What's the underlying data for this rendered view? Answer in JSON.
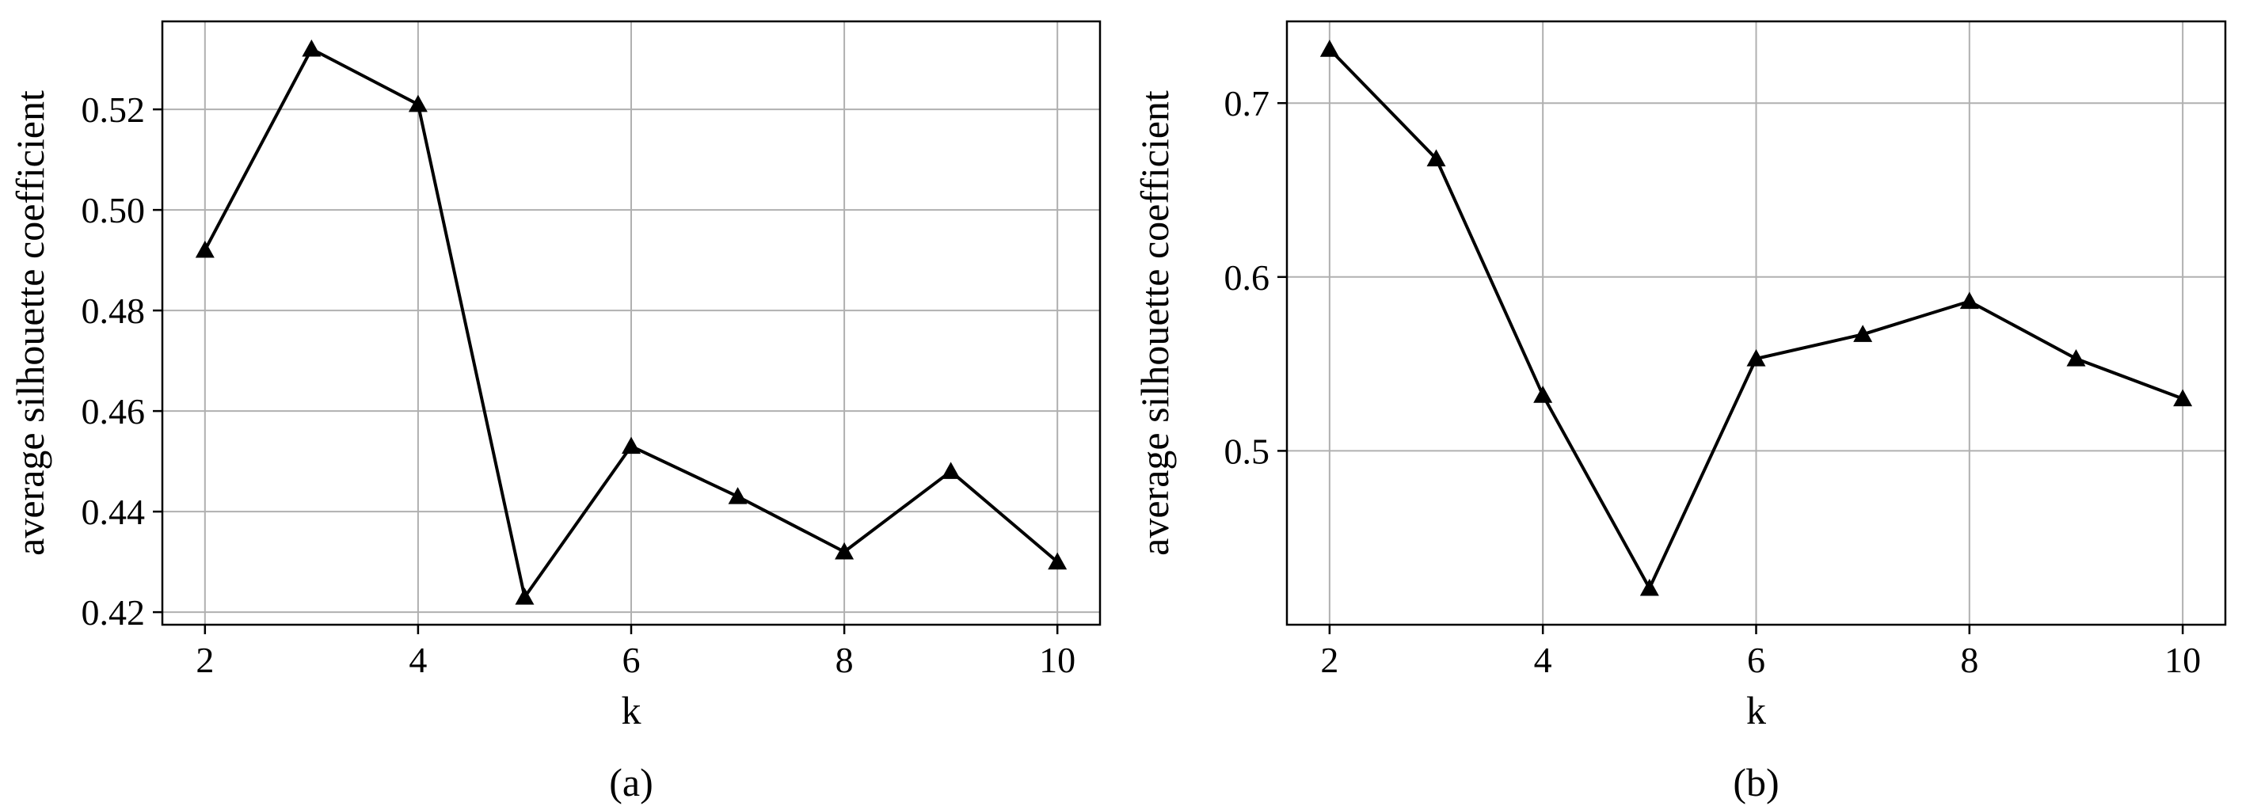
{
  "chart_data": [
    {
      "type": "line",
      "caption": "(a)",
      "xlabel": "k",
      "ylabel": "average silhouette coefficient",
      "x": [
        2,
        3,
        4,
        5,
        6,
        7,
        8,
        9,
        10
      ],
      "series": [
        {
          "values": [
            0.492,
            0.532,
            0.521,
            0.423,
            0.453,
            0.443,
            0.432,
            0.448,
            0.43
          ]
        }
      ],
      "marker": "triangle",
      "line_color": "#000000",
      "xlim": [
        1.6,
        10.4
      ],
      "ylim": [
        0.4175,
        0.5375
      ],
      "xticks": [
        2,
        4,
        6,
        8,
        10
      ],
      "xtick_labels": [
        "2",
        "4",
        "6",
        "8",
        "10"
      ],
      "yticks": [
        0.42,
        0.44,
        0.46,
        0.48,
        0.5,
        0.52
      ],
      "ytick_labels": [
        "0.42",
        "0.44",
        "0.46",
        "0.48",
        "0.50",
        "0.52"
      ],
      "grid": true,
      "grid_color": "#b0b0b0"
    },
    {
      "type": "line",
      "caption": "(b)",
      "xlabel": "k",
      "ylabel": "average silhouette coefficient",
      "x": [
        2,
        3,
        4,
        5,
        6,
        7,
        8,
        9,
        10
      ],
      "series": [
        {
          "values": [
            0.731,
            0.668,
            0.532,
            0.421,
            0.553,
            0.567,
            0.586,
            0.553,
            0.53
          ]
        }
      ],
      "marker": "triangle",
      "line_color": "#000000",
      "xlim": [
        1.6,
        10.4
      ],
      "ylim": [
        0.4,
        0.747
      ],
      "xticks": [
        2,
        4,
        6,
        8,
        10
      ],
      "xtick_labels": [
        "2",
        "4",
        "6",
        "8",
        "10"
      ],
      "yticks": [
        0.5,
        0.6,
        0.7
      ],
      "ytick_labels": [
        "0.5",
        "0.6",
        "0.7"
      ],
      "grid": true,
      "grid_color": "#b0b0b0"
    }
  ]
}
